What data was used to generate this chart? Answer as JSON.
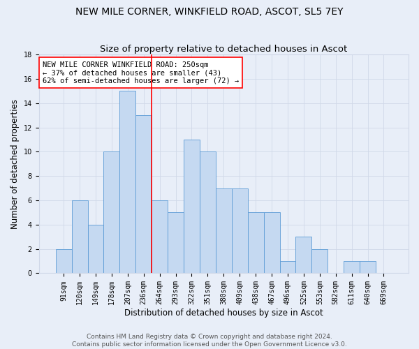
{
  "title": "NEW MILE CORNER, WINKFIELD ROAD, ASCOT, SL5 7EY",
  "subtitle": "Size of property relative to detached houses in Ascot",
  "xlabel": "Distribution of detached houses by size in Ascot",
  "ylabel": "Number of detached properties",
  "categories": [
    "91sqm",
    "120sqm",
    "149sqm",
    "178sqm",
    "207sqm",
    "236sqm",
    "264sqm",
    "293sqm",
    "322sqm",
    "351sqm",
    "380sqm",
    "409sqm",
    "438sqm",
    "467sqm",
    "496sqm",
    "525sqm",
    "553sqm",
    "582sqm",
    "611sqm",
    "640sqm",
    "669sqm"
  ],
  "values": [
    2,
    6,
    4,
    10,
    15,
    13,
    6,
    5,
    11,
    10,
    7,
    7,
    5,
    5,
    1,
    3,
    2,
    0,
    1,
    1,
    0
  ],
  "bar_color": "#c5d9f1",
  "bar_edge_color": "#5b9bd5",
  "vline_position": 5.5,
  "annotation_text": "NEW MILE CORNER WINKFIELD ROAD: 250sqm\n← 37% of detached houses are smaller (43)\n62% of semi-detached houses are larger (72) →",
  "annotation_box_color": "white",
  "annotation_box_edge_color": "red",
  "vline_color": "red",
  "ylim": [
    0,
    18
  ],
  "yticks": [
    0,
    2,
    4,
    6,
    8,
    10,
    12,
    14,
    16,
    18
  ],
  "grid_color": "#d0d8e8",
  "footer_text": "Contains HM Land Registry data © Crown copyright and database right 2024.\nContains public sector information licensed under the Open Government Licence v3.0.",
  "background_color": "#e8eef8",
  "title_fontsize": 10,
  "subtitle_fontsize": 9.5,
  "xlabel_fontsize": 8.5,
  "ylabel_fontsize": 8.5,
  "tick_fontsize": 7,
  "annotation_fontsize": 7.5,
  "footer_fontsize": 6.5
}
